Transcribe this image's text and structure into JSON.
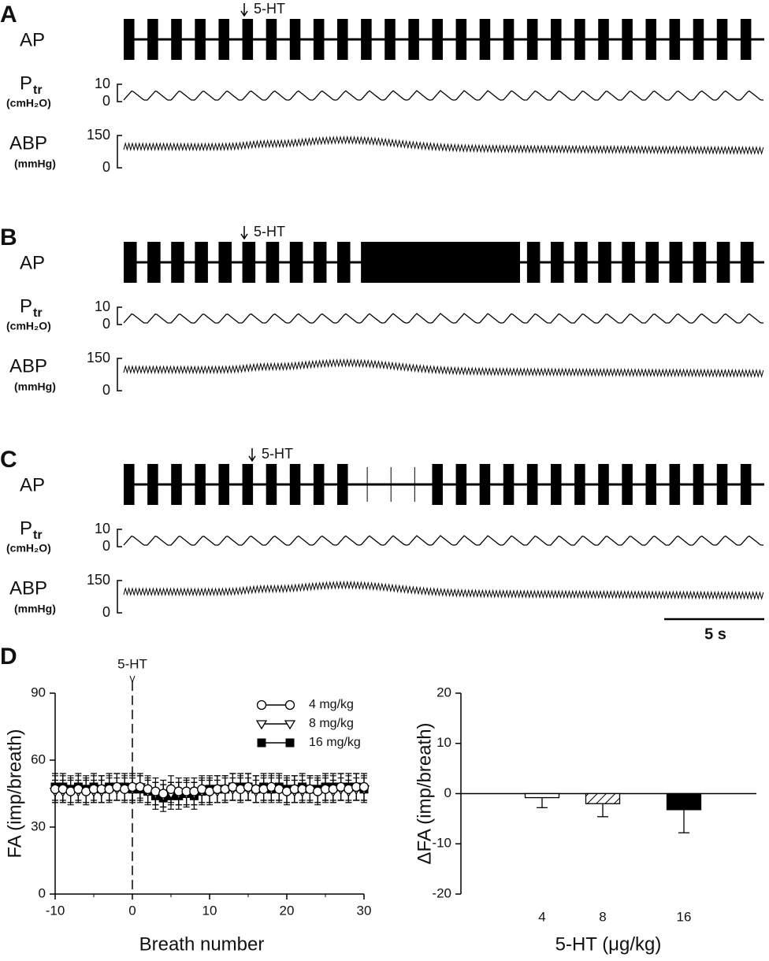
{
  "panels": [
    {
      "label": "A",
      "marker": "5-HT",
      "traces": {
        "ap": "AP",
        "ptr": "P",
        "ptr_sub": "tr",
        "ptr_unit": "(cmH₂O)",
        "ptr_ticks": [
          "10",
          "0"
        ],
        "abp": "ABP",
        "abp_unit": "(mmHg)",
        "abp_ticks": [
          "150",
          "0"
        ]
      }
    },
    {
      "label": "B",
      "marker": "5-HT",
      "traces": {
        "ap": "AP",
        "ptr": "P",
        "ptr_sub": "tr",
        "ptr_unit": "(cmH₂O)",
        "ptr_ticks": [
          "10",
          "0"
        ],
        "abp": "ABP",
        "abp_unit": "(mmHg)",
        "abp_ticks": [
          "150",
          "0"
        ]
      }
    },
    {
      "label": "C",
      "marker": "5-HT",
      "traces": {
        "ap": "AP",
        "ptr": "P",
        "ptr_sub": "tr",
        "ptr_unit": "(cmH₂O)",
        "ptr_ticks": [
          "10",
          "0"
        ],
        "abp": "ABP",
        "abp_unit": "(mmHg)",
        "abp_ticks": [
          "150",
          "0"
        ]
      }
    }
  ],
  "scale_bar": "5 s",
  "panel_d_label": "D",
  "chart_data": [
    {
      "type": "line",
      "xlabel": "Breath number",
      "ylabel": "FA (imp/breath)",
      "annotation": {
        "text": "5-HT",
        "x": 0
      },
      "x": [
        -10,
        -9,
        -8,
        -7,
        -6,
        -5,
        -4,
        -3,
        -2,
        -1,
        0,
        1,
        2,
        3,
        4,
        5,
        6,
        7,
        8,
        9,
        10,
        11,
        12,
        13,
        14,
        15,
        16,
        17,
        18,
        19,
        20,
        21,
        22,
        23,
        24,
        25,
        26,
        27,
        28,
        29,
        30
      ],
      "series": [
        {
          "name": "4 mg/kg",
          "color": "#000000",
          "marker": "open-circle",
          "values": [
            47,
            47,
            46,
            47,
            46,
            47,
            47,
            47,
            48,
            47,
            48,
            48,
            47,
            46,
            45,
            47,
            46,
            46,
            46,
            47,
            46,
            47,
            47,
            48,
            47,
            48,
            47,
            47,
            48,
            47,
            46,
            47,
            47,
            47,
            46,
            47,
            47,
            48,
            47,
            48,
            48
          ],
          "errors": [
            6,
            6,
            6,
            6,
            6,
            6,
            6,
            6,
            6,
            6,
            6,
            6,
            6,
            6,
            6,
            6,
            6,
            6,
            6,
            6,
            6,
            6,
            6,
            6,
            6,
            6,
            6,
            6,
            6,
            6,
            6,
            6,
            6,
            6,
            6,
            6,
            6,
            6,
            6,
            6,
            6
          ]
        },
        {
          "name": "8 mg/kg",
          "color": "#000000",
          "marker": "open-triangle-down",
          "values": [
            46,
            46,
            46,
            46,
            46,
            46,
            46,
            47,
            47,
            47,
            47,
            48,
            46,
            45,
            44,
            45,
            45,
            45,
            45,
            46,
            46,
            46,
            47,
            47,
            47,
            47,
            46,
            47,
            47,
            47,
            46,
            46,
            46,
            47,
            46,
            47,
            46,
            47,
            46,
            47,
            47
          ],
          "errors": [
            5,
            5,
            5,
            5,
            5,
            5,
            5,
            5,
            5,
            5,
            5,
            5,
            5,
            5,
            5,
            5,
            5,
            5,
            5,
            5,
            5,
            5,
            5,
            5,
            5,
            5,
            5,
            5,
            5,
            5,
            5,
            5,
            5,
            5,
            5,
            5,
            5,
            5,
            5,
            5,
            5
          ]
        },
        {
          "name": "16 mg/kg",
          "color": "#000000",
          "marker": "filled-square",
          "values": [
            48,
            48,
            47,
            48,
            47,
            48,
            47,
            48,
            48,
            48,
            47,
            47,
            46,
            44,
            43,
            44,
            44,
            45,
            44,
            46,
            47,
            47,
            47,
            48,
            48,
            48,
            47,
            48,
            47,
            48,
            47,
            47,
            48,
            47,
            47,
            48,
            48,
            48,
            48,
            48,
            47
          ],
          "errors": [
            6,
            6,
            6,
            6,
            6,
            6,
            6,
            6,
            6,
            6,
            6,
            6,
            6,
            6,
            6,
            6,
            6,
            6,
            6,
            6,
            6,
            6,
            6,
            6,
            6,
            6,
            6,
            6,
            6,
            6,
            6,
            6,
            6,
            6,
            6,
            6,
            6,
            6,
            6,
            6,
            6
          ]
        }
      ],
      "xlim": [
        -10,
        30
      ],
      "xticks": [
        -10,
        0,
        10,
        20,
        30
      ],
      "ylim": [
        0,
        90
      ],
      "yticks": [
        0,
        30,
        60,
        90
      ]
    },
    {
      "type": "bar",
      "xlabel": "5-HT (μg/kg)",
      "ylabel": "ΔFA (imp/breath)",
      "categories": [
        "4",
        "8",
        "16"
      ],
      "values": [
        -0.8,
        -2,
        -3.2
      ],
      "errors": [
        2,
        2.6,
        4.6
      ],
      "fills": [
        "open",
        "hatched",
        "solid"
      ],
      "color": "#000000",
      "ylim": [
        -20,
        20
      ],
      "yticks": [
        -20,
        -10,
        0,
        10,
        20
      ]
    }
  ]
}
